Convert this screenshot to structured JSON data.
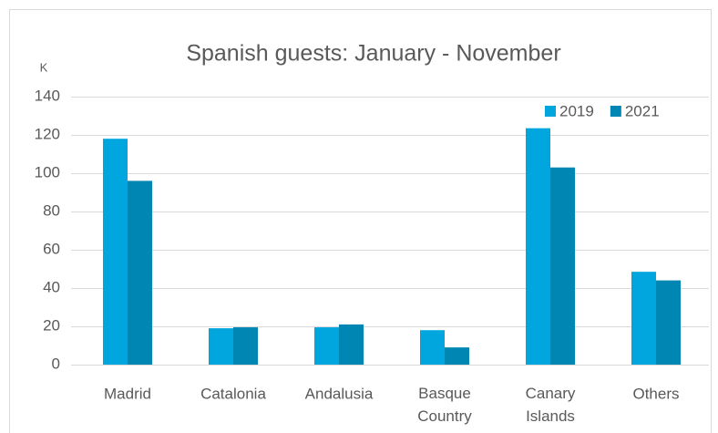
{
  "chart_data": {
    "type": "bar",
    "title": "Spanish guests: January - November",
    "y_label": "K",
    "categories": [
      "Madrid",
      "Catalonia",
      "Andalusia",
      "Basque Country",
      "Canary Islands",
      "Others"
    ],
    "series": [
      {
        "name": "2019",
        "color": "#00a6dd",
        "values": [
          118,
          19,
          19.5,
          18,
          123.5,
          48.5
        ]
      },
      {
        "name": "2021",
        "color": "#0086b3",
        "values": [
          96,
          19.5,
          21,
          9,
          103,
          44
        ]
      }
    ],
    "ylim": [
      0,
      140
    ],
    "yticks": [
      0,
      20,
      40,
      60,
      80,
      100,
      120,
      140
    ],
    "grid": true,
    "legend": "top-right"
  }
}
